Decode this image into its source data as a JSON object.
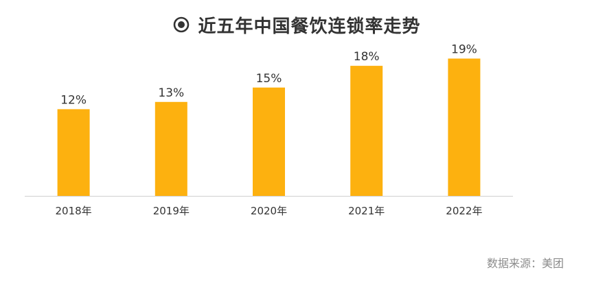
{
  "title": "近五年中国餐饮连锁率走势",
  "source": "数据来源：美团",
  "colors": {
    "bar": "#FDB10F",
    "axis": "#d0d0d0",
    "text": "#333333",
    "icon": "#333333"
  },
  "icon": "target-icon",
  "chart_data": {
    "type": "bar",
    "categories": [
      "2018年",
      "2019年",
      "2020年",
      "2021年",
      "2022年"
    ],
    "values": [
      12,
      13,
      15,
      18,
      19
    ],
    "data_labels": [
      "12%",
      "13%",
      "15%",
      "18%",
      "19%"
    ],
    "title": "近五年中国餐饮连锁率走势",
    "xlabel": "",
    "ylabel": "",
    "ylim": [
      0,
      20
    ],
    "grid": false,
    "legend": "none"
  }
}
